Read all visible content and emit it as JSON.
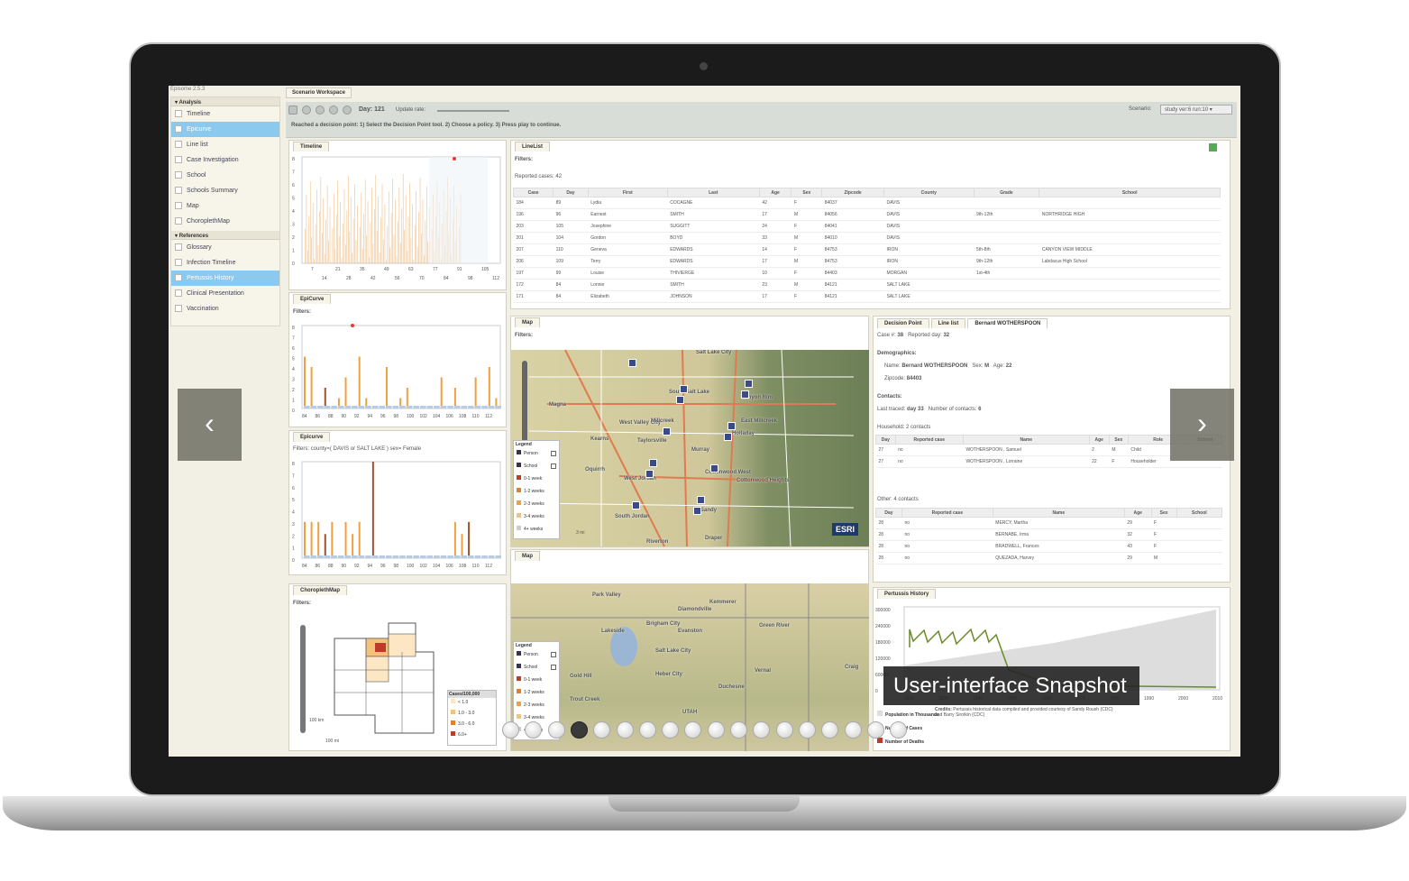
{
  "app": {
    "version": "Episome 2.5.3",
    "workspace_tab": "Scenario Workspace"
  },
  "toolbar": {
    "day_label": "Day:",
    "day_value": "121",
    "update_rate_label": "Update rate:",
    "scenario_label": "Scenario:",
    "scenario_value": "study ver:6 run:10",
    "message": "Reached a decision point: 1) Select the Decision Point tool. 2) Choose a policy. 3) Press play to continue."
  },
  "sidebar": {
    "analysis_header": "Analysis",
    "analysis_items": [
      "Timeline",
      "Epicurve",
      "Line list",
      "Case Investigation",
      "School",
      "Schools Summary",
      "Map",
      "ChoroplethMap"
    ],
    "references_header": "References",
    "reference_items": [
      "Glossary",
      "Infection Timeline",
      "Pertussis History",
      "Clinical Presentation",
      "Vaccination"
    ]
  },
  "panels": {
    "timeline": "Timeline",
    "epicurve1": "EpiCurve",
    "epicurve2": "Epicurve",
    "choropleth": "ChoroplethMap",
    "linelist": "LineList",
    "map1": "Map",
    "map2": "Map",
    "history": "Pertussis History"
  },
  "filters": {
    "label": "Filters:",
    "epicurve2_filter": "Filters: county=( DAVIS or SALT LAKE )  sex= Female",
    "reported_cases": "Reported cases: 42"
  },
  "timeline_axis": {
    "y": [
      "8",
      "7",
      "6",
      "5",
      "4",
      "3",
      "2",
      "1",
      "0"
    ],
    "x_top": [
      "7",
      "21",
      "35",
      "49",
      "63",
      "77",
      "91",
      "105"
    ],
    "x_bottom": [
      "14",
      "28",
      "42",
      "56",
      "70",
      "84",
      "98",
      "112"
    ]
  },
  "epicurve_axis": {
    "y": [
      "8",
      "7",
      "6",
      "5",
      "4",
      "3",
      "2",
      "1",
      "0"
    ],
    "x": [
      "84",
      "86",
      "88",
      "90",
      "92",
      "94",
      "96",
      "98",
      "100",
      "102",
      "104",
      "106",
      "108",
      "110",
      "112"
    ]
  },
  "chart_data": [
    {
      "type": "bar",
      "title": "EpiCurve",
      "x": [
        84,
        85,
        86,
        87,
        88,
        89,
        90,
        91,
        92,
        93,
        94,
        95,
        96,
        97,
        98,
        99,
        100,
        101,
        102,
        103,
        104,
        105,
        106,
        107,
        108,
        109,
        110,
        111,
        112
      ],
      "values": [
        5,
        4,
        0,
        2,
        0,
        1,
        3,
        0,
        5,
        1,
        0,
        0,
        4,
        0,
        1,
        2,
        0,
        0,
        0,
        0,
        3,
        0,
        2,
        0,
        0,
        3,
        0,
        4,
        1
      ]
    },
    {
      "type": "bar",
      "title": "Epicurve",
      "x": [
        84,
        85,
        86,
        87,
        88,
        89,
        90,
        91,
        92,
        93,
        94,
        95,
        96,
        97,
        98,
        99,
        100,
        101,
        102,
        103,
        104,
        105,
        106,
        107,
        108,
        109,
        110,
        111,
        112
      ],
      "values": [
        3,
        3,
        3,
        2,
        3,
        0,
        3,
        2,
        3,
        0,
        8,
        0,
        0,
        0,
        0,
        0,
        0,
        0,
        0,
        0,
        0,
        0,
        3,
        2,
        3,
        0,
        0,
        0,
        0
      ]
    },
    {
      "type": "line",
      "title": "Pertussis History",
      "yticks": [
        "300000",
        "240000",
        "180000",
        "120000",
        "60000",
        "0"
      ],
      "xticks": [
        "1920",
        "1930",
        "1940",
        "1950",
        "1960",
        "1970",
        "1980",
        "1990",
        "2000",
        "2010"
      ]
    }
  ],
  "linelist": {
    "headers": [
      "Case",
      "Day",
      "First",
      "Last",
      "Age",
      "Sex",
      "Zipcode",
      "County",
      "Grade",
      "School"
    ],
    "rows": [
      [
        "184",
        "89",
        "Lydia",
        "COCAGNE",
        "42",
        "F",
        "84037",
        "DAVIS",
        "",
        ""
      ],
      [
        "196",
        "96",
        "Earnest",
        "SMITH",
        "17",
        "M",
        "84056",
        "DAVIS",
        "9th-12th",
        "NORTHRIDGE HIGH"
      ],
      [
        "203",
        "105",
        "Josephine",
        "SUGGITT",
        "24",
        "F",
        "84041",
        "DAVIS",
        "",
        ""
      ],
      [
        "201",
        "104",
        "Gordon",
        "BOYD",
        "33",
        "M",
        "84010",
        "DAVIS",
        "",
        ""
      ],
      [
        "207",
        "110",
        "Geneva",
        "EDWARDS",
        "14",
        "F",
        "84753",
        "IRON",
        "5th-8th",
        "CANYON VIEW MIDDLE"
      ],
      [
        "206",
        "109",
        "Terry",
        "EDWARDS",
        "17",
        "M",
        "84753",
        "IRON",
        "9th-12th",
        "Labdacus High School"
      ],
      [
        "197",
        "99",
        "Louise",
        "THIVIERGE",
        "10",
        "F",
        "84403",
        "MORGAN",
        "1st-4th",
        ""
      ],
      [
        "172",
        "84",
        "Lonnie",
        "SMITH",
        "23",
        "M",
        "84121",
        "SALT LAKE",
        "",
        ""
      ],
      [
        "171",
        "84",
        "Elizabeth",
        "JOHNSON",
        "17",
        "F",
        "84121",
        "SALT LAKE",
        "",
        ""
      ]
    ]
  },
  "legend": {
    "title": "Legend",
    "items": [
      "Person",
      "School",
      "0-1 week",
      "1-2 weeks",
      "2-3 weeks",
      "3-4 weeks",
      "4+ weeks"
    ],
    "colors": [
      "#c0392b",
      "#e67e22",
      "#f0a040",
      "#f4c27a",
      "#ccc"
    ]
  },
  "choro_legend": {
    "title": "Cases/100,000",
    "items": [
      "< 1.0",
      "1.0 - 3.0",
      "3.0 - 6.0",
      "6.0+"
    ],
    "scale_km": "100 km",
    "scale_mi": "100 mi"
  },
  "map_labels": [
    "Salt Lake City",
    "Magna",
    "West Valley City",
    "Millcreek",
    "East Millcreek",
    "Canyon Rim",
    "South Salt Lake",
    "Kearns",
    "Taylorsville",
    "Holladay",
    "Murray",
    "Oquirrh",
    "West Jordan",
    "Cottonwood West",
    "Cottonwood Heights",
    "South Jordan",
    "Sandy",
    "Riverton",
    "Draper"
  ],
  "map2_labels": [
    "Park Valley",
    "Kemmerer",
    "Diamondville",
    "Lakeside",
    "Brigham City",
    "Evanston",
    "Green River",
    "Salt Lake City",
    "Heber City",
    "Vernal",
    "Duchesne",
    "Craig",
    "Gold Hill",
    "Trout Creek",
    "UTAH"
  ],
  "investigation": {
    "tabs": [
      "Decision Point",
      "Line list",
      "Bernard WOTHERSPOON"
    ],
    "case_label": "Case #:",
    "case_no": "38",
    "reported_label": "Reported day:",
    "reported_day": "32",
    "demographics": "Demographics:",
    "name_label": "Name:",
    "name": "Bernard WOTHERSPOON",
    "sex_label": "Sex:",
    "sex": "M",
    "age_label": "Age:",
    "age": "22",
    "zip_label": "Zipcode:",
    "zip": "84403",
    "contacts": "Contacts:",
    "last_traced": "Last traced:",
    "last_traced_val": "day 33",
    "num_contacts_label": "Number of contacts:",
    "num_contacts": "6",
    "household": "Household: 2 contacts",
    "hh_headers": [
      "Day",
      "Reported case",
      "Name",
      "Age",
      "Sex",
      "Role",
      "School"
    ],
    "hh_rows": [
      [
        "27",
        "no",
        "WOTHERSPOON , Samuel",
        "2",
        "M",
        "Child",
        ""
      ],
      [
        "27",
        "no",
        "WOTHERSPOON , Lorraine",
        "22",
        "F",
        "Householder",
        ""
      ]
    ],
    "other": "Other: 4 contacts",
    "ot_headers": [
      "Day",
      "Reported case",
      "Name",
      "Age",
      "Sex",
      "School"
    ],
    "ot_rows": [
      [
        "28",
        "no",
        "MERCY, Martha",
        "29",
        "F",
        ""
      ],
      [
        "28",
        "no",
        "BERNABE, Irma",
        "32",
        "F",
        ""
      ],
      [
        "28",
        "no",
        "BRADWELL, Frances",
        "43",
        "F",
        ""
      ],
      [
        "28",
        "no",
        "QUEZADA, Harvey",
        "29",
        "M",
        ""
      ]
    ]
  },
  "history": {
    "legend": [
      "Population in Thousands",
      "Number of Cases",
      "Number of Deaths"
    ],
    "credits_label": "Credits:",
    "credits": "Pertussis historical data compiled and provided courtesy of Sandy Roush (CDC) and Barry Sirotkin (CDC)"
  },
  "esri": "ESRI",
  "scale": "3 mi",
  "carousel": {
    "caption": "User-interface Snapshot",
    "prev": "‹",
    "next": "›",
    "dots": 18,
    "active": 3
  }
}
